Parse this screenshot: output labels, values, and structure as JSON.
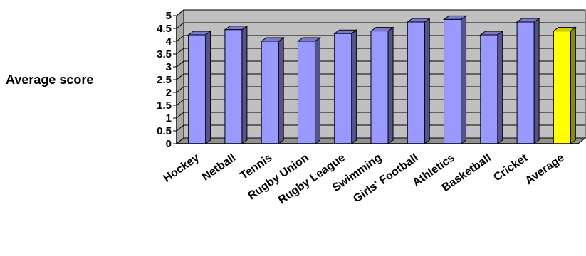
{
  "chart_data": {
    "type": "bar",
    "title": "",
    "xlabel": "",
    "ylabel": "Average score",
    "ylim": [
      0,
      5
    ],
    "yticks": [
      "0",
      "0.5",
      "1",
      "1.5",
      "2",
      "2.5",
      "3",
      "3.5",
      "4",
      "4.5",
      "5"
    ],
    "grid": true,
    "style": "3d",
    "categories": [
      "Hockey",
      "Netball",
      "Tennis",
      "Rugby Union",
      "Rugby League",
      "Swimming",
      "Girls' Football",
      "Athletics",
      "Basketball",
      "Cricket",
      "Average"
    ],
    "values": [
      4.25,
      4.45,
      4.0,
      4.0,
      4.3,
      4.4,
      4.75,
      4.85,
      4.25,
      4.75,
      4.4
    ],
    "colors": {
      "bar": "#9999ff",
      "highlight_bar": "#ffff00",
      "plot_background": "#c0c0c0",
      "grid": "#000000"
    },
    "highlight_category": "Average"
  }
}
